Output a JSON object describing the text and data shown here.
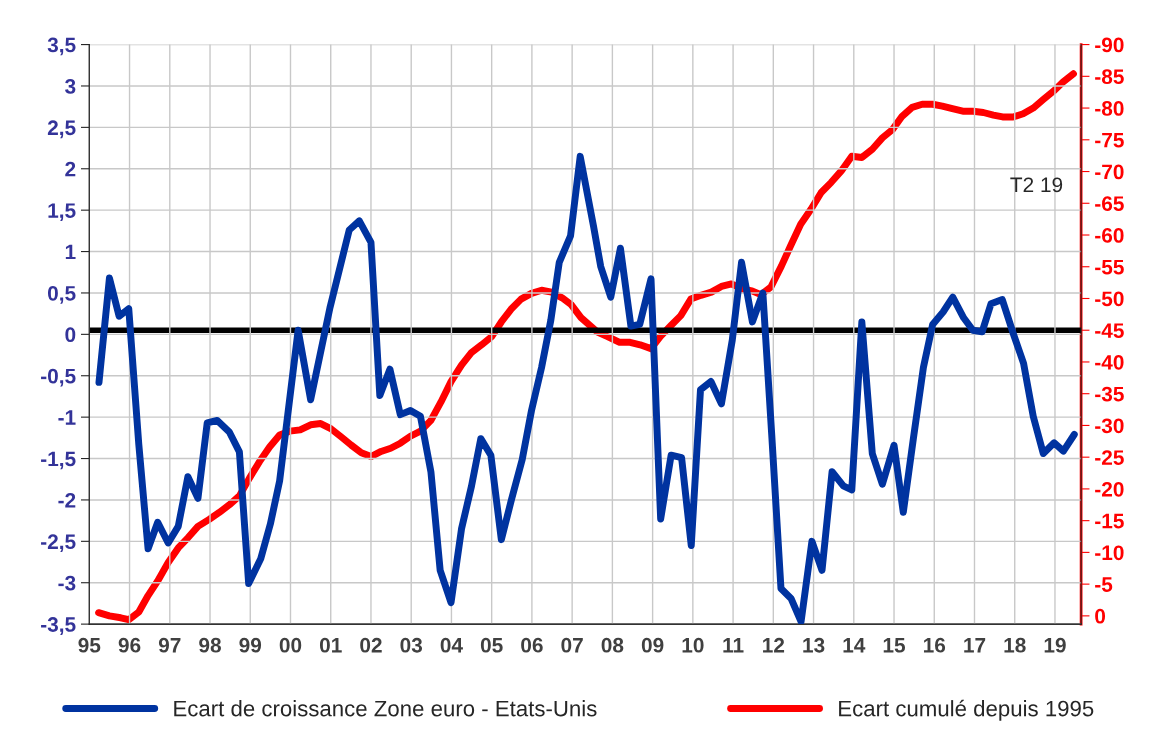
{
  "chart_data": {
    "type": "line",
    "xlim": [
      1995,
      2019.65
    ],
    "xticks": [
      {
        "value": 1995,
        "label": "95"
      },
      {
        "value": 1996,
        "label": "96"
      },
      {
        "value": 1997,
        "label": "97"
      },
      {
        "value": 1998,
        "label": "98"
      },
      {
        "value": 1999,
        "label": "99"
      },
      {
        "value": 2000,
        "label": "00"
      },
      {
        "value": 2001,
        "label": "01"
      },
      {
        "value": 2002,
        "label": "02"
      },
      {
        "value": 2003,
        "label": "03"
      },
      {
        "value": 2004,
        "label": "04"
      },
      {
        "value": 2005,
        "label": "05"
      },
      {
        "value": 2006,
        "label": "06"
      },
      {
        "value": 2007,
        "label": "07"
      },
      {
        "value": 2008,
        "label": "08"
      },
      {
        "value": 2009,
        "label": "09"
      },
      {
        "value": 2010,
        "label": "10"
      },
      {
        "value": 2011,
        "label": "11"
      },
      {
        "value": 2012,
        "label": "12"
      },
      {
        "value": 2013,
        "label": "13"
      },
      {
        "value": 2014,
        "label": "14"
      },
      {
        "value": 2015,
        "label": "15"
      },
      {
        "value": 2016,
        "label": "16"
      },
      {
        "value": 2017,
        "label": "17"
      },
      {
        "value": 2018,
        "label": "18"
      },
      {
        "value": 2019,
        "label": "19"
      }
    ],
    "ylim": [
      -3.5,
      3.5
    ],
    "yticks": [
      {
        "value": -3.5,
        "label": "-3,5"
      },
      -3,
      {
        "value": -2.5,
        "label": "-2,5"
      },
      -2,
      {
        "value": -1.5,
        "label": "-1,5"
      },
      -1,
      {
        "value": -0.5,
        "label": "-0,5"
      },
      0,
      {
        "value": 0.5,
        "label": "0,5"
      },
      1,
      {
        "value": 1.5,
        "label": "1,5"
      },
      2,
      {
        "value": 2.5,
        "label": "2,5"
      },
      3,
      {
        "value": 3.5,
        "label": "3,5"
      }
    ],
    "y2lim": [
      1.3,
      -90
    ],
    "y2ticks": [
      0,
      -5,
      -10,
      -15,
      -20,
      -25,
      -30,
      -35,
      -40,
      -45,
      -50,
      -55,
      -60,
      -65,
      -70,
      -75,
      -80,
      -85,
      -90
    ],
    "grid": true,
    "legend": "bottom",
    "annotations": [
      "T2 19"
    ],
    "ref_lines": [
      {
        "axis": "y2",
        "value": -45,
        "color": "#000000"
      }
    ],
    "series": [
      {
        "name": "Ecart de croissance Zone euro - Etats-Unis",
        "color": "#0033a0",
        "x": [
          1995.24,
          1995.5,
          1995.74,
          1995.98,
          1996.23,
          1996.46,
          1996.7,
          1996.96,
          1997.21,
          1997.45,
          1997.7,
          1997.93,
          1998.18,
          1998.48,
          1998.73,
          1998.96,
          1999.26,
          1999.5,
          1999.73,
          2000.19,
          2000.5,
          2000.98,
          2001.46,
          2001.71,
          2002.0,
          2002.22,
          2002.47,
          2002.73,
          2002.98,
          2003.23,
          2003.49,
          2003.72,
          2003.99,
          2004.25,
          2004.5,
          2004.73,
          2004.98,
          2005.24,
          2005.49,
          2005.76,
          2005.99,
          2006.24,
          2006.47,
          2006.68,
          2006.96,
          2007.2,
          2007.53,
          2007.71,
          2007.96,
          2008.2,
          2008.46,
          2008.68,
          2008.96,
          2009.2,
          2009.46,
          2009.72,
          2009.96,
          2010.19,
          2010.45,
          2010.71,
          2010.98,
          2011.21,
          2011.48,
          2011.74,
          2011.96,
          2012.19,
          2012.44,
          2012.69,
          2012.96,
          2013.21,
          2013.46,
          2013.74,
          2013.95,
          2014.2,
          2014.46,
          2014.71,
          2015.0,
          2015.23,
          2015.48,
          2015.73,
          2015.96,
          2016.22,
          2016.46,
          2016.73,
          2016.96,
          2017.19,
          2017.41,
          2017.69,
          2017.97,
          2018.22,
          2018.46,
          2018.71,
          2018.98,
          2019.21,
          2019.48
        ],
        "values": [
          -0.58,
          0.68,
          0.22,
          0.31,
          -1.33,
          -2.59,
          -2.27,
          -2.52,
          -2.32,
          -1.72,
          -1.98,
          -1.07,
          -1.04,
          -1.18,
          -1.42,
          -3.01,
          -2.71,
          -2.29,
          -1.77,
          0.05,
          -0.79,
          0.32,
          1.26,
          1.37,
          1.11,
          -0.74,
          -0.42,
          -0.97,
          -0.92,
          -0.99,
          -1.66,
          -2.85,
          -3.24,
          -2.35,
          -1.83,
          -1.26,
          -1.46,
          -2.48,
          -2.0,
          -1.51,
          -0.92,
          -0.4,
          0.17,
          0.87,
          1.19,
          2.15,
          1.31,
          0.82,
          0.45,
          1.04,
          0.1,
          0.12,
          0.67,
          -2.23,
          -1.46,
          -1.49,
          -2.55,
          -0.67,
          -0.57,
          -0.84,
          -0.07,
          0.87,
          0.15,
          0.5,
          -1.21,
          -3.07,
          -3.19,
          -3.47,
          -2.5,
          -2.85,
          -1.66,
          -1.83,
          -1.88,
          0.15,
          -1.44,
          -1.81,
          -1.34,
          -2.15,
          -1.26,
          -0.4,
          0.12,
          0.27,
          0.45,
          0.2,
          0.05,
          0.03,
          0.37,
          0.42,
          0.0,
          -0.35,
          -0.99,
          -1.44,
          -1.31,
          -1.41,
          -1.21
        ]
      },
      {
        "name": "Ecart cumulé depuis 1995",
        "color": "#ff0000",
        "axis": "y2",
        "x": [
          1995.23,
          1995.5,
          1995.78,
          1995.98,
          1996.23,
          1996.46,
          1996.7,
          1996.96,
          1997.21,
          1997.45,
          1997.7,
          1997.98,
          1998.23,
          1998.48,
          1998.73,
          1998.98,
          1999.23,
          1999.48,
          1999.73,
          1999.98,
          2000.24,
          2000.5,
          2000.75,
          2001.0,
          2001.26,
          2001.51,
          2001.76,
          2002.0,
          2002.25,
          2002.49,
          2002.73,
          2002.98,
          2003.23,
          2003.49,
          2003.74,
          2003.99,
          2004.25,
          2004.5,
          2004.75,
          2005.0,
          2005.24,
          2005.48,
          2005.73,
          2005.99,
          2006.24,
          2006.49,
          2006.75,
          2006.98,
          2007.22,
          2007.63,
          2007.88,
          2008.18,
          2008.44,
          2008.69,
          2008.96,
          2009.19,
          2009.45,
          2009.7,
          2009.95,
          2010.2,
          2010.46,
          2010.71,
          2010.96,
          2011.22,
          2011.47,
          2011.69,
          2011.94,
          2012.2,
          2012.43,
          2012.68,
          2012.94,
          2013.19,
          2013.44,
          2013.69,
          2013.95,
          2014.2,
          2014.46,
          2014.71,
          2014.96,
          2015.2,
          2015.45,
          2015.7,
          2015.96,
          2016.2,
          2016.45,
          2016.71,
          2016.96,
          2017.22,
          2017.47,
          2017.7,
          2017.96,
          2018.21,
          2018.46,
          2018.72,
          2018.97,
          2019.2,
          2019.46
        ],
        "values": [
          -0.5,
          0,
          0.3,
          0.6,
          -0.6,
          -3.2,
          -5.5,
          -8.4,
          -10.7,
          -12.3,
          -14.1,
          -15.2,
          -16.3,
          -17.5,
          -18.9,
          -21.7,
          -24.3,
          -26.6,
          -28.5,
          -29.1,
          -29.3,
          -30.1,
          -30.3,
          -29.5,
          -28.2,
          -26.9,
          -25.7,
          -25.1,
          -25.9,
          -26.4,
          -27.2,
          -28.3,
          -29.1,
          -30.8,
          -33.7,
          -36.9,
          -39.5,
          -41.5,
          -42.7,
          -44.0,
          -46.3,
          -48.3,
          -49.9,
          -50.8,
          -51.3,
          -51.0,
          -50.1,
          -49.0,
          -47.0,
          -44.7,
          -44.0,
          -43.1,
          -43.1,
          -42.7,
          -42.1,
          -44.0,
          -45.7,
          -47.3,
          -49.9,
          -50.5,
          -51.0,
          -51.9,
          -52.3,
          -51.5,
          -51.2,
          -50.6,
          -51.8,
          -55.1,
          -58.3,
          -61.7,
          -64.1,
          -66.7,
          -68.3,
          -70.1,
          -72.4,
          -72.2,
          -73.5,
          -75.3,
          -76.6,
          -78.7,
          -80.1,
          -80.6,
          -80.6,
          -80.3,
          -79.9,
          -79.5,
          -79.5,
          -79.3,
          -78.9,
          -78.6,
          -78.6,
          -79.1,
          -80.0,
          -81.4,
          -82.7,
          -84.1,
          -85.4
        ]
      }
    ]
  }
}
